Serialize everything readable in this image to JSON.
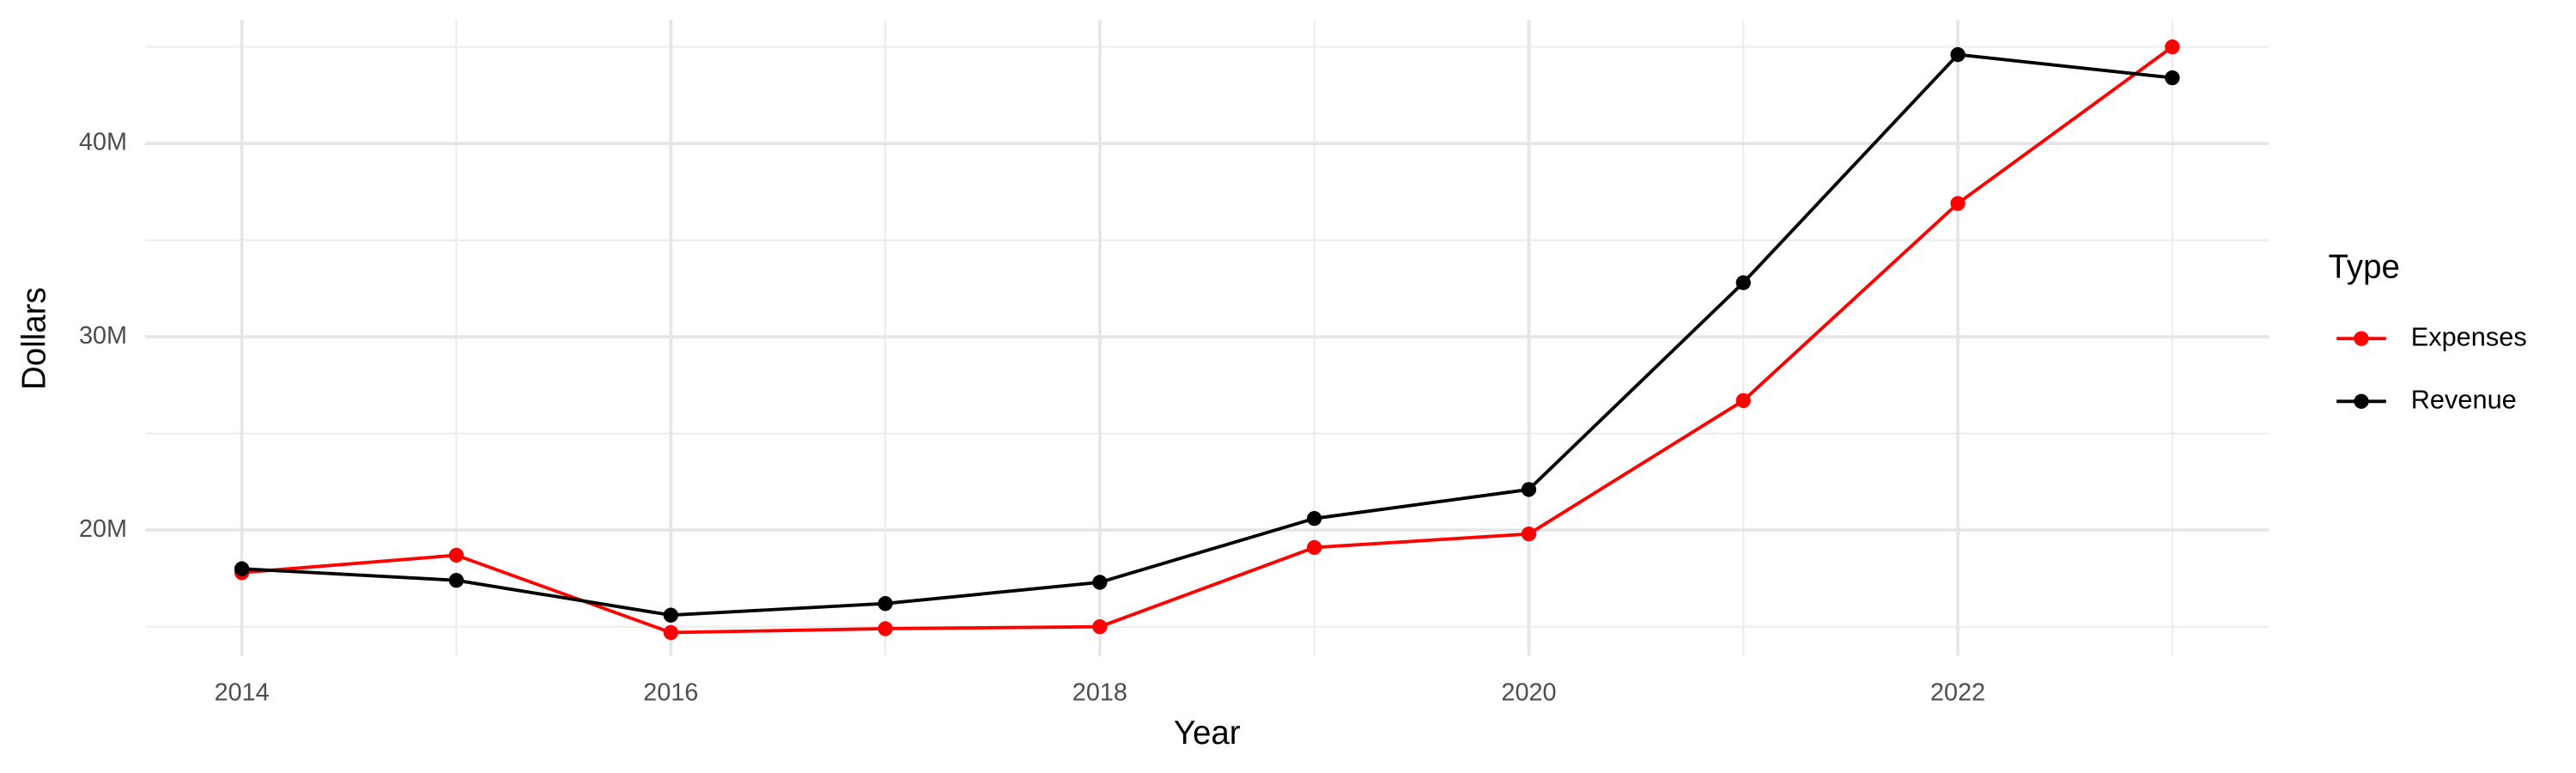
{
  "chart_data": {
    "type": "line",
    "x_label": "Year",
    "y_label": "Dollars",
    "legend_title": "Type",
    "legend": "right",
    "grid": true,
    "x": [
      2014,
      2015,
      2016,
      2017,
      2018,
      2019,
      2020,
      2021,
      2022,
      2023
    ],
    "series": [
      {
        "name": "Expenses",
        "color": "#ff0000",
        "values": [
          17800000,
          18700000,
          14700000,
          14900000,
          15000000,
          19100000,
          19800000,
          26700000,
          36900000,
          45000000
        ]
      },
      {
        "name": "Revenue",
        "color": "#000000",
        "values": [
          18000000,
          17400000,
          15600000,
          16200000,
          17300000,
          20600000,
          22100000,
          32800000,
          44600000,
          43400000
        ]
      }
    ],
    "xlim": [
      2013.55,
      2023.45
    ],
    "xticks": [
      2014,
      2016,
      2018,
      2020,
      2022
    ],
    "ylim": [
      13500000,
      46400000
    ],
    "yticks": [
      {
        "value": 20000000,
        "label": "20M"
      },
      {
        "value": 30000000,
        "label": "30M"
      },
      {
        "value": 40000000,
        "label": "40M"
      }
    ]
  }
}
